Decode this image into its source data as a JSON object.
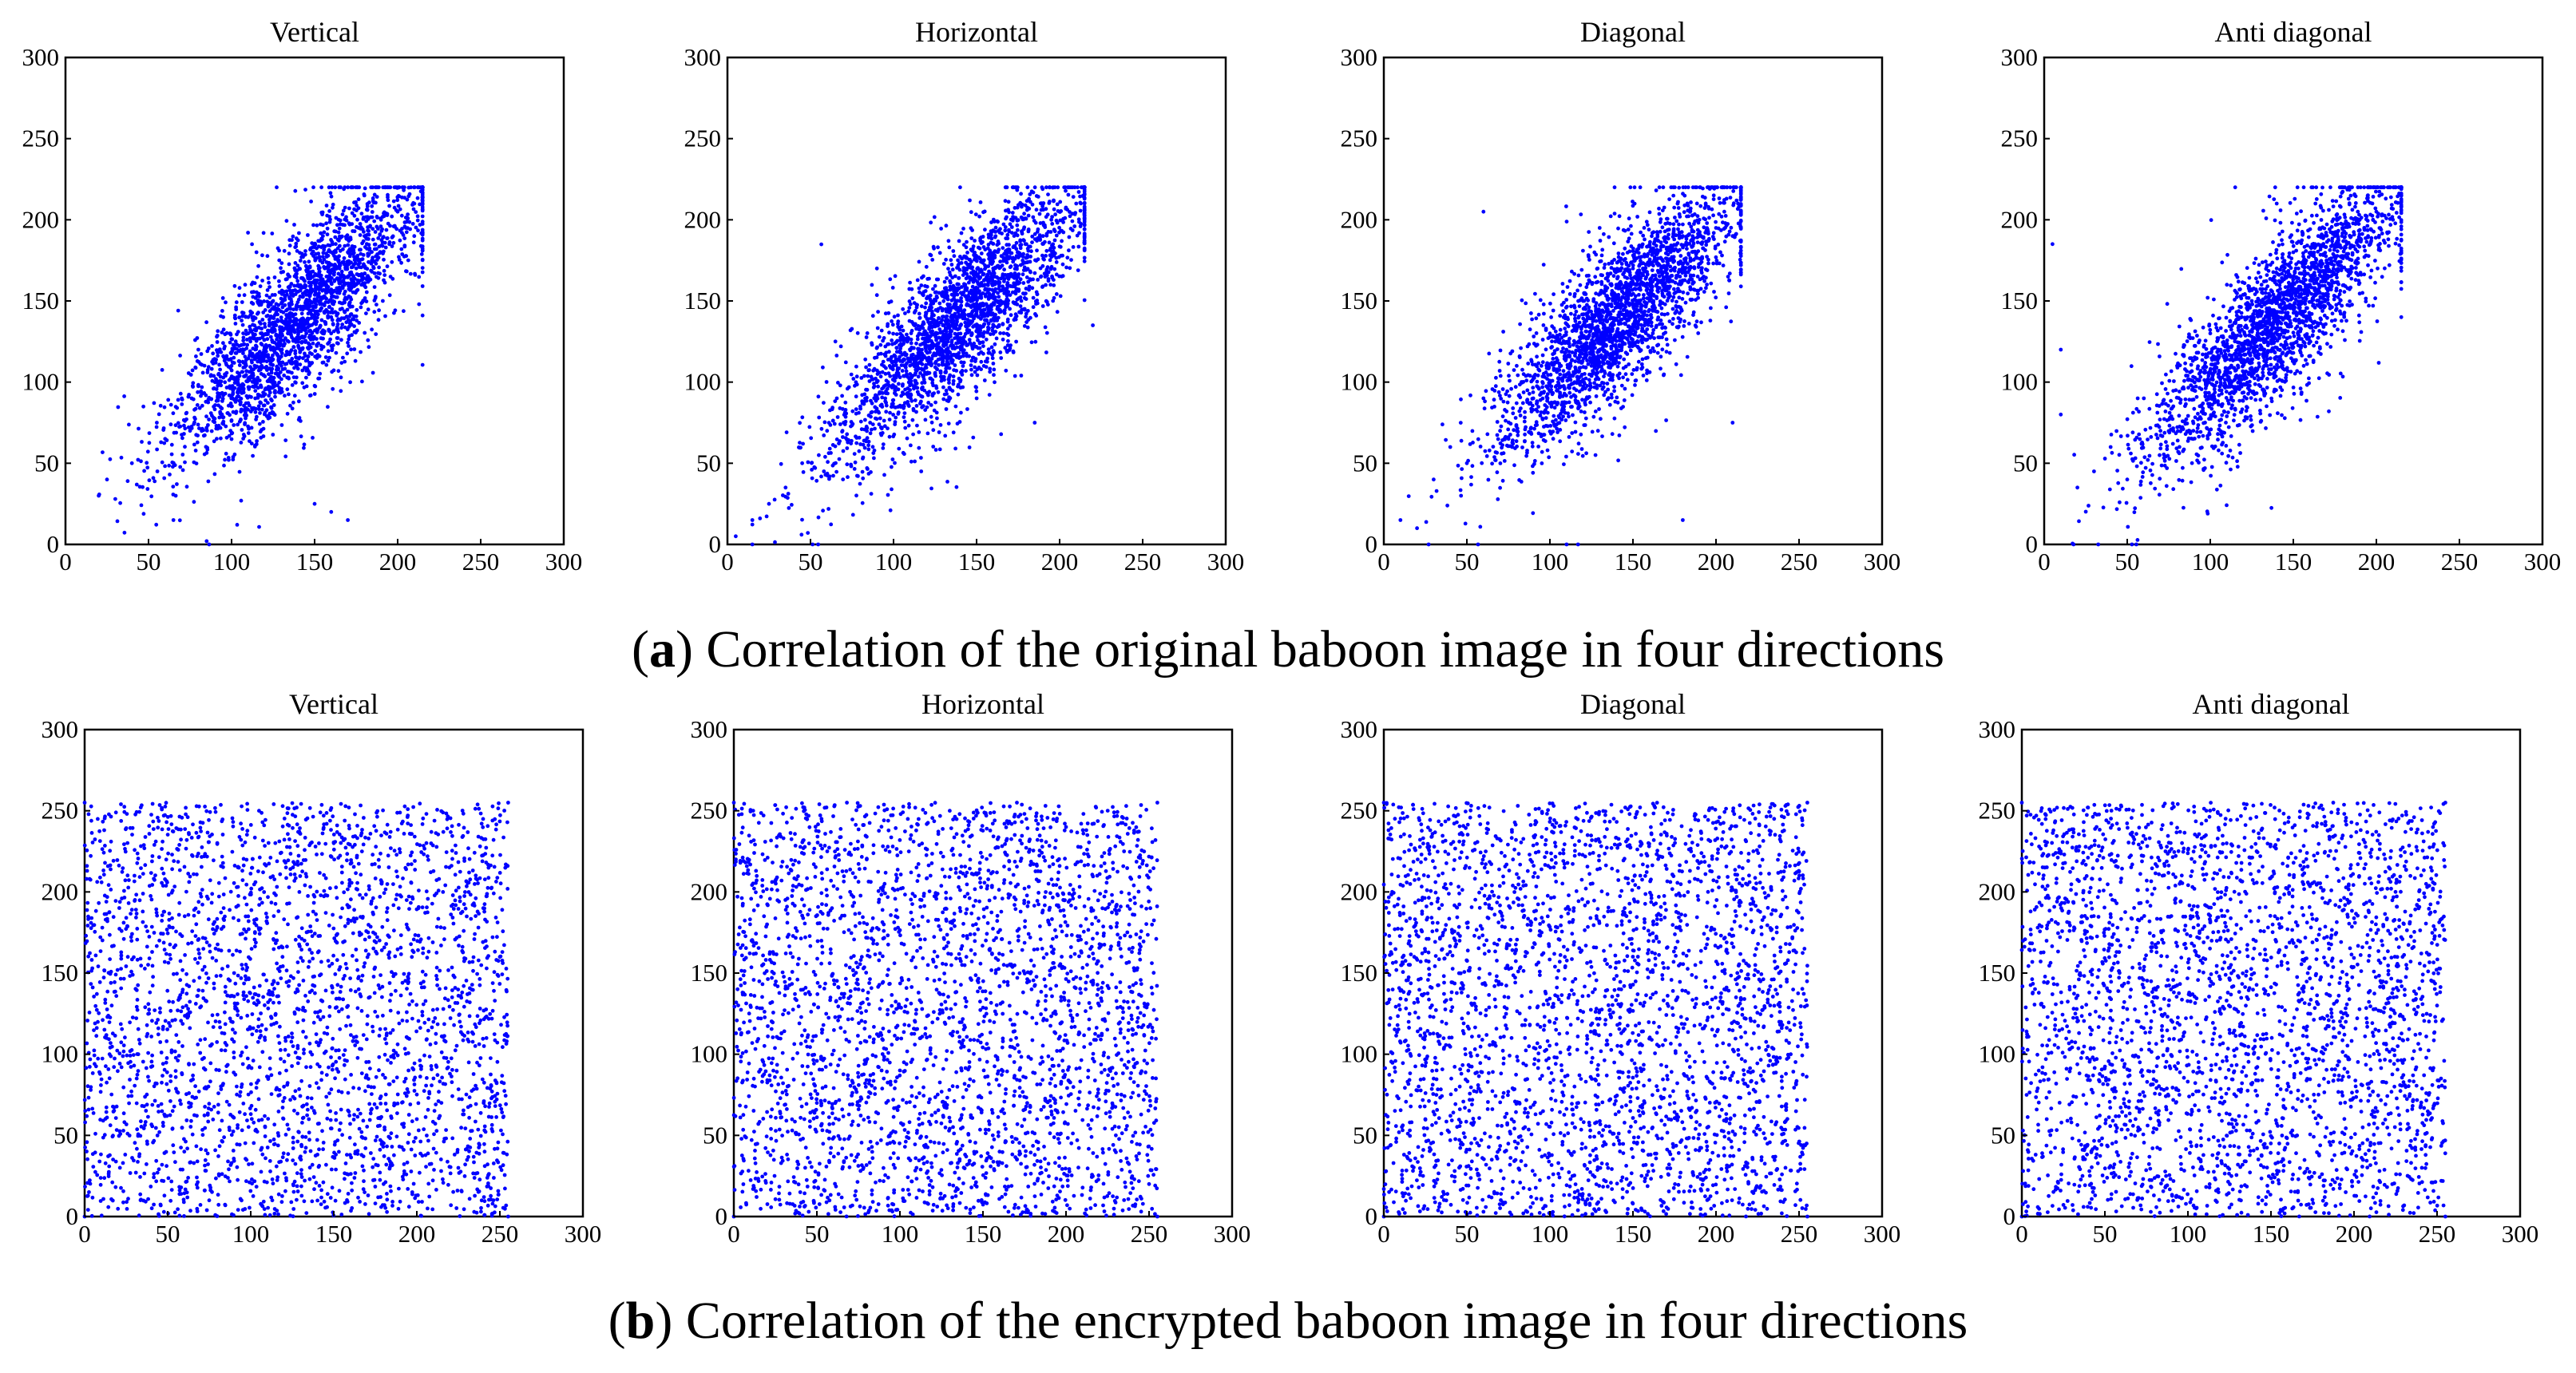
{
  "figure": {
    "caption_a": {
      "prefix": "(",
      "tag": "a",
      "suffix": ") Correlation of the original baboon image in four directions"
    },
    "caption_b": {
      "prefix": "(",
      "tag": "b",
      "suffix": ") Correlation of the encrypted baboon image in four directions"
    }
  },
  "style": {
    "point_color": "#0000ff",
    "axis_color": "#000000",
    "background": "#ffffff"
  },
  "chart_data": [
    {
      "type": "scatter",
      "title": "Vertical",
      "xlabel": "",
      "ylabel": "",
      "xlim": [
        0,
        300
      ],
      "ylim": [
        0,
        300
      ],
      "xticks": [
        0,
        50,
        100,
        150,
        200,
        250,
        300
      ],
      "yticks": [
        0,
        50,
        100,
        150,
        200,
        250,
        300
      ],
      "grid": false,
      "legend": "none",
      "series": [
        {
          "distribution": "correlated",
          "values": [
            [
              20,
              30
            ],
            [
              25,
              40
            ],
            [
              30,
              28
            ],
            [
              40,
              50
            ],
            [
              55,
              75
            ],
            [
              60,
              65
            ],
            [
              70,
              90
            ],
            [
              75,
              70
            ],
            [
              80,
              120
            ],
            [
              90,
              100
            ],
            [
              95,
              140
            ],
            [
              100,
              110
            ],
            [
              105,
              95
            ],
            [
              110,
              130
            ],
            [
              115,
              180
            ],
            [
              120,
              120
            ],
            [
              125,
              150
            ],
            [
              130,
              110
            ],
            [
              135,
              140
            ],
            [
              140,
              160
            ],
            [
              145,
              130
            ],
            [
              150,
              150
            ],
            [
              155,
              190
            ],
            [
              160,
              140
            ],
            [
              165,
              170
            ],
            [
              170,
              180
            ],
            [
              175,
              160
            ],
            [
              180,
              190
            ],
            [
              185,
              175
            ],
            [
              190,
              200
            ],
            [
              195,
              185
            ],
            [
              200,
              205
            ],
            [
              205,
              195
            ],
            [
              210,
              190
            ],
            [
              150,
              25
            ],
            [
              160,
              20
            ],
            [
              170,
              15
            ],
            [
              85,
              2
            ],
            [
              65,
              15
            ]
          ]
        }
      ]
    },
    {
      "type": "scatter",
      "title": "Horizontal",
      "xlabel": "",
      "ylabel": "",
      "xlim": [
        0,
        300
      ],
      "ylim": [
        0,
        300
      ],
      "xticks": [
        0,
        50,
        100,
        150,
        200,
        250,
        300
      ],
      "yticks": [
        0,
        50,
        100,
        150,
        200,
        250,
        300
      ],
      "grid": false,
      "legend": "none",
      "series": [
        {
          "distribution": "correlated",
          "values": [
            [
              5,
              5
            ],
            [
              15,
              15
            ],
            [
              25,
              25
            ],
            [
              35,
              35
            ],
            [
              45,
              50
            ],
            [
              55,
              55
            ],
            [
              60,
              70
            ],
            [
              70,
              75
            ],
            [
              80,
              85
            ],
            [
              90,
              100
            ],
            [
              95,
              90
            ],
            [
              100,
              110
            ],
            [
              110,
              105
            ],
            [
              115,
              120
            ],
            [
              120,
              130
            ],
            [
              130,
              125
            ],
            [
              135,
              140
            ],
            [
              140,
              150
            ],
            [
              150,
              145
            ],
            [
              155,
              160
            ],
            [
              160,
              170
            ],
            [
              170,
              165
            ],
            [
              175,
              180
            ],
            [
              180,
              185
            ],
            [
              190,
              190
            ],
            [
              195,
              200
            ],
            [
              200,
              205
            ],
            [
              210,
              210
            ],
            [
              220,
              135
            ],
            [
              185,
              75
            ],
            [
              65,
              125
            ],
            [
              90,
              170
            ]
          ]
        }
      ]
    },
    {
      "type": "scatter",
      "title": "Diagonal",
      "xlabel": "",
      "ylabel": "",
      "xlim": [
        0,
        300
      ],
      "ylim": [
        0,
        300
      ],
      "xticks": [
        0,
        50,
        100,
        150,
        200,
        250,
        300
      ],
      "yticks": [
        0,
        50,
        100,
        150,
        200,
        250,
        300
      ],
      "grid": false,
      "legend": "none",
      "series": [
        {
          "distribution": "correlated",
          "values": [
            [
              10,
              15
            ],
            [
              20,
              10
            ],
            [
              30,
              40
            ],
            [
              40,
              60
            ],
            [
              50,
              50
            ],
            [
              60,
              90
            ],
            [
              70,
              70
            ],
            [
              80,
              110
            ],
            [
              90,
              90
            ],
            [
              100,
              130
            ],
            [
              105,
              100
            ],
            [
              110,
              120
            ],
            [
              120,
              150
            ],
            [
              125,
              110
            ],
            [
              130,
              140
            ],
            [
              140,
              160
            ],
            [
              145,
              130
            ],
            [
              150,
              170
            ],
            [
              160,
              150
            ],
            [
              165,
              180
            ],
            [
              170,
              165
            ],
            [
              180,
              190
            ],
            [
              185,
              175
            ],
            [
              190,
              200
            ],
            [
              200,
              195
            ],
            [
              205,
              205
            ],
            [
              210,
              190
            ],
            [
              210,
              75
            ],
            [
              180,
              15
            ],
            [
              60,
              205
            ]
          ]
        }
      ]
    },
    {
      "type": "scatter",
      "title": "Anti diagonal",
      "xlabel": "",
      "ylabel": "",
      "xlim": [
        0,
        300
      ],
      "ylim": [
        0,
        300
      ],
      "xticks": [
        0,
        50,
        100,
        150,
        200,
        250,
        300
      ],
      "yticks": [
        0,
        50,
        100,
        150,
        200,
        250,
        300
      ],
      "grid": false,
      "legend": "none",
      "series": [
        {
          "distribution": "correlated",
          "values": [
            [
              5,
              185
            ],
            [
              10,
              120
            ],
            [
              10,
              80
            ],
            [
              20,
              35
            ],
            [
              30,
              45
            ],
            [
              40,
              60
            ],
            [
              50,
              40
            ],
            [
              60,
              90
            ],
            [
              70,
              70
            ],
            [
              80,
              110
            ],
            [
              90,
              95
            ],
            [
              100,
              130
            ],
            [
              105,
              105
            ],
            [
              110,
              160
            ],
            [
              120,
              120
            ],
            [
              125,
              150
            ],
            [
              130,
              135
            ],
            [
              140,
              170
            ],
            [
              145,
              140
            ],
            [
              150,
              180
            ],
            [
              160,
              160
            ],
            [
              165,
              190
            ],
            [
              170,
              175
            ],
            [
              180,
              195
            ],
            [
              190,
              200
            ],
            [
              195,
              190
            ],
            [
              200,
              205
            ],
            [
              210,
              200
            ],
            [
              215,
              140
            ],
            [
              115,
              220
            ],
            [
              140,
              210
            ]
          ]
        }
      ]
    },
    {
      "type": "scatter",
      "title": "Vertical",
      "xlabel": "",
      "ylabel": "",
      "xlim": [
        0,
        300
      ],
      "ylim": [
        0,
        300
      ],
      "xticks": [
        0,
        50,
        100,
        150,
        200,
        250,
        300
      ],
      "yticks": [
        0,
        50,
        100,
        150,
        200,
        250,
        300
      ],
      "grid": false,
      "legend": "none",
      "series": [
        {
          "distribution": "uniform",
          "values": [
            [
              0,
              0
            ],
            [
              255,
              255
            ],
            [
              0,
              255
            ],
            [
              255,
              0
            ],
            [
              30,
              210
            ],
            [
              60,
              40
            ],
            [
              90,
              150
            ],
            [
              120,
              80
            ],
            [
              150,
              230
            ],
            [
              180,
              20
            ],
            [
              210,
              120
            ],
            [
              240,
              190
            ],
            [
              15,
              100
            ],
            [
              45,
              170
            ],
            [
              75,
              10
            ],
            [
              105,
              250
            ],
            [
              135,
              60
            ],
            [
              165,
              140
            ],
            [
              195,
              90
            ],
            [
              225,
              30
            ],
            [
              250,
              160
            ],
            [
              128,
              128
            ]
          ]
        }
      ]
    },
    {
      "type": "scatter",
      "title": "Horizontal",
      "xlabel": "",
      "ylabel": "",
      "xlim": [
        0,
        300
      ],
      "ylim": [
        0,
        300
      ],
      "xticks": [
        0,
        50,
        100,
        150,
        200,
        250,
        300
      ],
      "yticks": [
        0,
        50,
        100,
        150,
        200,
        250,
        300
      ],
      "grid": false,
      "legend": "none",
      "series": [
        {
          "distribution": "uniform",
          "values": [
            [
              0,
              0
            ],
            [
              255,
              255
            ],
            [
              0,
              255
            ],
            [
              255,
              0
            ],
            [
              20,
              180
            ],
            [
              50,
              70
            ],
            [
              80,
              220
            ],
            [
              110,
              30
            ],
            [
              140,
              160
            ],
            [
              170,
              110
            ],
            [
              200,
              240
            ],
            [
              230,
              50
            ],
            [
              10,
              130
            ],
            [
              40,
              15
            ],
            [
              70,
              200
            ],
            [
              100,
              90
            ],
            [
              130,
              250
            ],
            [
              160,
              40
            ],
            [
              190,
              180
            ],
            [
              220,
              130
            ],
            [
              250,
              20
            ],
            [
              128,
              128
            ]
          ]
        }
      ]
    },
    {
      "type": "scatter",
      "title": "Diagonal",
      "xlabel": "",
      "ylabel": "",
      "xlim": [
        0,
        300
      ],
      "ylim": [
        0,
        300
      ],
      "xticks": [
        0,
        50,
        100,
        150,
        200,
        250,
        300
      ],
      "yticks": [
        0,
        50,
        100,
        150,
        200,
        250,
        300
      ],
      "grid": false,
      "legend": "none",
      "series": [
        {
          "distribution": "uniform",
          "values": [
            [
              0,
              0
            ],
            [
              255,
              255
            ],
            [
              0,
              255
            ],
            [
              255,
              0
            ],
            [
              25,
              60
            ],
            [
              55,
              230
            ],
            [
              85,
              110
            ],
            [
              115,
              15
            ],
            [
              145,
              190
            ],
            [
              175,
              70
            ],
            [
              205,
              140
            ],
            [
              235,
              245
            ],
            [
              5,
              200
            ],
            [
              35,
              120
            ],
            [
              65,
              35
            ],
            [
              95,
              175
            ],
            [
              125,
              95
            ],
            [
              155,
              5
            ],
            [
              185,
              225
            ],
            [
              215,
              55
            ],
            [
              245,
              100
            ],
            [
              128,
              128
            ]
          ]
        }
      ]
    },
    {
      "type": "scatter",
      "title": "Anti diagonal",
      "xlabel": "",
      "ylabel": "",
      "xlim": [
        0,
        300
      ],
      "ylim": [
        0,
        300
      ],
      "xticks": [
        0,
        50,
        100,
        150,
        200,
        250,
        300
      ],
      "yticks": [
        0,
        50,
        100,
        150,
        200,
        250,
        300
      ],
      "grid": false,
      "legend": "none",
      "series": [
        {
          "distribution": "uniform",
          "values": [
            [
              0,
              0
            ],
            [
              255,
              255
            ],
            [
              0,
              255
            ],
            [
              255,
              0
            ],
            [
              35,
              150
            ],
            [
              65,
              25
            ],
            [
              95,
              205
            ],
            [
              125,
              115
            ],
            [
              155,
              45
            ],
            [
              185,
              165
            ],
            [
              215,
              235
            ],
            [
              245,
              75
            ],
            [
              15,
              60
            ],
            [
              45,
              240
            ],
            [
              75,
              125
            ],
            [
              105,
              5
            ],
            [
              135,
              185
            ],
            [
              165,
              95
            ],
            [
              195,
              15
            ],
            [
              225,
              200
            ],
            [
              250,
              130
            ],
            [
              128,
              128
            ]
          ]
        }
      ]
    }
  ]
}
